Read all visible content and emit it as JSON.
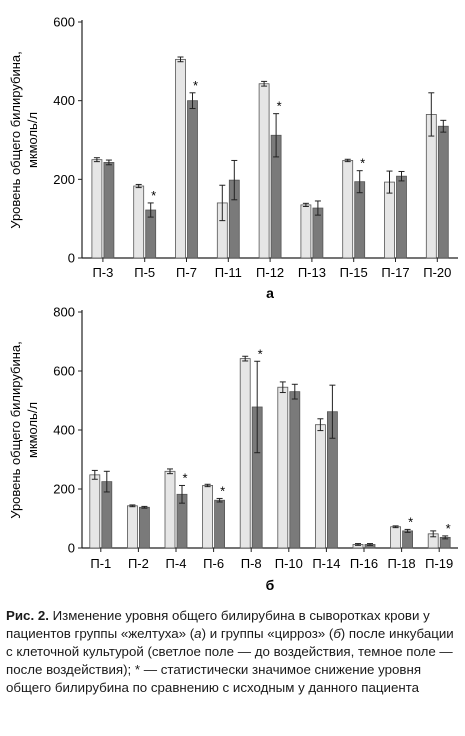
{
  "chart_data": [
    {
      "type": "bar",
      "panel": "а",
      "ylabel": "Уровень общего билирубина, мкмоль/л",
      "ylabel_lines": [
        "Уровень общего билирубина,",
        "мкмоль/л"
      ],
      "ylim": [
        0,
        600
      ],
      "yticks": [
        0,
        200,
        400,
        600
      ],
      "grid": false,
      "categories": [
        "П-3",
        "П-5",
        "П-7",
        "П-11",
        "П-12",
        "П-13",
        "П-15",
        "П-17",
        "П-20"
      ],
      "series": [
        {
          "name": "до воздействия",
          "color": "#e6e6e6",
          "values": [
            250,
            183,
            505,
            140,
            443,
            135,
            248,
            193,
            365
          ],
          "errors": [
            5,
            4,
            6,
            45,
            6,
            4,
            3,
            28,
            55
          ]
        },
        {
          "name": "после воздействия",
          "color": "#7a7a7a",
          "values": [
            243,
            122,
            400,
            198,
            312,
            127,
            194,
            208,
            335
          ],
          "errors": [
            6,
            18,
            20,
            50,
            55,
            18,
            28,
            12,
            15
          ]
        }
      ],
      "significant": [
        false,
        true,
        true,
        false,
        true,
        false,
        true,
        false,
        false
      ],
      "marker": "*"
    },
    {
      "type": "bar",
      "panel": "б",
      "ylabel": "Уровень общего билирубина, мкмоль/л",
      "ylabel_lines": [
        "Уровень общего билирубина,",
        "мкмоль/л"
      ],
      "ylim": [
        0,
        800
      ],
      "yticks": [
        0,
        200,
        400,
        600,
        800
      ],
      "grid": false,
      "categories": [
        "П-1",
        "П-2",
        "П-4",
        "П-6",
        "П-8",
        "П-10",
        "П-14",
        "П-16",
        "П-18",
        "П-19"
      ],
      "series": [
        {
          "name": "до воздействия",
          "color": "#e6e6e6",
          "values": [
            248,
            143,
            260,
            212,
            642,
            545,
            418,
            12,
            72,
            48
          ],
          "errors": [
            15,
            3,
            8,
            4,
            8,
            18,
            20,
            3,
            3,
            10
          ]
        },
        {
          "name": "после воздействия",
          "color": "#7a7a7a",
          "values": [
            225,
            138,
            182,
            162,
            478,
            530,
            462,
            12,
            58,
            36
          ],
          "errors": [
            35,
            3,
            30,
            6,
            155,
            25,
            90,
            3,
            5,
            5
          ]
        }
      ],
      "significant": [
        false,
        false,
        true,
        true,
        true,
        false,
        false,
        false,
        true,
        true
      ],
      "marker": "*"
    }
  ],
  "caption": {
    "fig_no": "Рис. 2.",
    "text_1": " Изменение уровня общего билирубина в сыворотках крови у пациентов группы «желтуха» (",
    "label_a": "а",
    "text_2": ") и группы «цирроз» (",
    "label_b": "б",
    "text_3": ") после инкубации с клеточной культурой (светлое поле — до воздействия, темное поле — после воздействия); * — статистически значимое снижение уровня общего билирубина по сравнению с исходным у данного пациента"
  }
}
